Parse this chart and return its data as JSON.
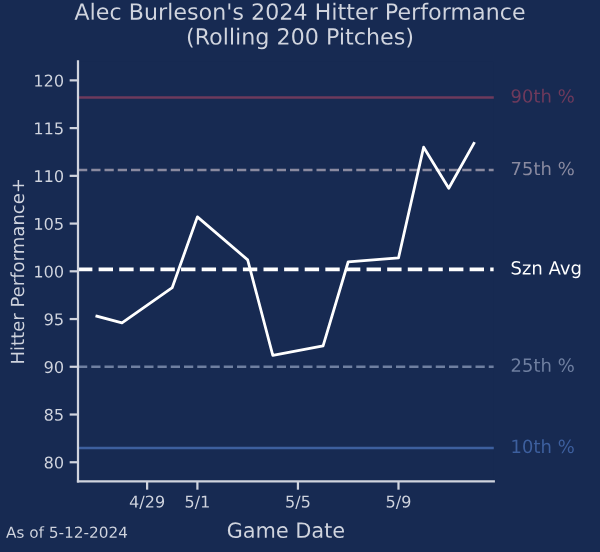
{
  "chart_data": {
    "type": "line",
    "title": "Alec Burleson's 2024 Hitter Performance\n(Rolling 200 Pitches)",
    "xlabel": "Game Date",
    "ylabel": "Hitter Performance+",
    "x": [
      "2024-04-27",
      "2024-04-28",
      "2024-04-30",
      "2024-05-01",
      "2024-05-03",
      "2024-05-04",
      "2024-05-06",
      "2024-05-07",
      "2024-05-09",
      "2024-05-10",
      "2024-05-11",
      "2024-05-12"
    ],
    "series": [
      {
        "color": "#ffffff",
        "values": [
          95.3,
          94.6,
          98.3,
          105.7,
          101.2,
          91.2,
          92.2,
          101.0,
          101.4,
          113.0,
          108.7,
          113.4
        ]
      }
    ],
    "xlim": [
      "2024-04-26T06:00",
      "2024-05-12T19:00"
    ],
    "xticks": [
      {
        "value": "2024-04-29",
        "label": "4/29"
      },
      {
        "value": "2024-05-01",
        "label": "5/1"
      },
      {
        "value": "2024-05-05",
        "label": "5/5"
      },
      {
        "value": "2024-05-09",
        "label": "5/9"
      }
    ],
    "ylim": [
      78,
      122
    ],
    "yticks": [
      80,
      85,
      90,
      95,
      100,
      105,
      110,
      115,
      120
    ],
    "ref_lines": [
      {
        "axis": "y",
        "value": 118.2,
        "label": "90th %",
        "color": "#6e3a5c",
        "line_style": "solid"
      },
      {
        "axis": "y",
        "value": 110.6,
        "label": "75th %",
        "color": "#8a8aa0",
        "line_style": "dashed"
      },
      {
        "axis": "y",
        "value": 100.2,
        "label": "Szn Avg",
        "color": "#ffffff",
        "line_style": "dashed"
      },
      {
        "axis": "y",
        "value": 90,
        "label": "25th %",
        "color": "#6f7fa0",
        "line_style": "dashed"
      },
      {
        "axis": "y",
        "value": 81.5,
        "label": "10th %",
        "color": "#3d5f9e",
        "line_style": "solid"
      }
    ],
    "annotations": [
      "As of 5-12-2024"
    ],
    "grid": false,
    "legend": false,
    "marker": "none",
    "line_style": "solid"
  }
}
